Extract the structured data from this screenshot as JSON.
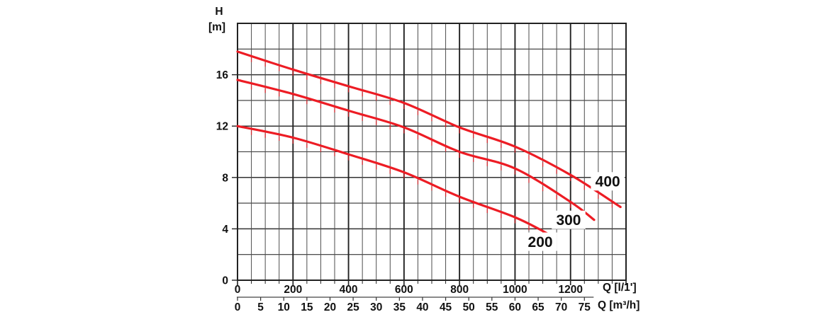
{
  "chart_data": {
    "type": "line",
    "description": "Pump performance curves: head H versus flow rate Q",
    "y_axis": {
      "title1": "H",
      "title2": "[m]",
      "ticks": [
        0,
        4,
        8,
        12,
        16
      ],
      "range": [
        0,
        20
      ],
      "minor_step": 2
    },
    "x_axis_primary": {
      "title": "Q [l/1']",
      "ticks": [
        0,
        200,
        400,
        600,
        800,
        1000,
        1200
      ],
      "range": [
        0,
        1400
      ],
      "minor_step": 50,
      "major_step": 200
    },
    "x_axis_secondary": {
      "title": "Q [m³/h]",
      "ticks": [
        0,
        5,
        10,
        15,
        20,
        25,
        30,
        35,
        40,
        45,
        50,
        55,
        60,
        65,
        70,
        75
      ],
      "units_per_primary": 0.06,
      "axis_end_q": 77
    },
    "series": [
      {
        "name": "200",
        "points": [
          [
            0,
            12.0
          ],
          [
            200,
            11.1
          ],
          [
            400,
            9.8
          ],
          [
            600,
            8.4
          ],
          [
            800,
            6.5
          ],
          [
            1000,
            4.9
          ],
          [
            1120,
            3.6
          ]
        ],
        "label_anchor": {
          "q": 1091,
          "h": 3.0
        }
      },
      {
        "name": "300",
        "points": [
          [
            0,
            15.6
          ],
          [
            200,
            14.5
          ],
          [
            400,
            13.2
          ],
          [
            600,
            11.9
          ],
          [
            800,
            10.0
          ],
          [
            1000,
            8.7
          ],
          [
            1200,
            6.1
          ],
          [
            1285,
            4.7
          ]
        ],
        "label_anchor": {
          "q": 1193,
          "h": 4.7
        }
      },
      {
        "name": "400",
        "points": [
          [
            0,
            17.8
          ],
          [
            200,
            16.4
          ],
          [
            400,
            15.1
          ],
          [
            600,
            13.8
          ],
          [
            800,
            11.9
          ],
          [
            1000,
            10.4
          ],
          [
            1200,
            8.2
          ],
          [
            1380,
            5.7
          ]
        ],
        "label_anchor": {
          "q": 1334,
          "h": 7.7
        }
      }
    ],
    "legend_position": "on-curve-labels",
    "grid": true,
    "colors": {
      "curve": "#ed1c24",
      "grid_minor": "#4d4d4d",
      "grid_major": "#222222",
      "grid_horizontal": "#333333",
      "border": "#222222",
      "text": "#111111",
      "background": "#ffffff"
    }
  }
}
